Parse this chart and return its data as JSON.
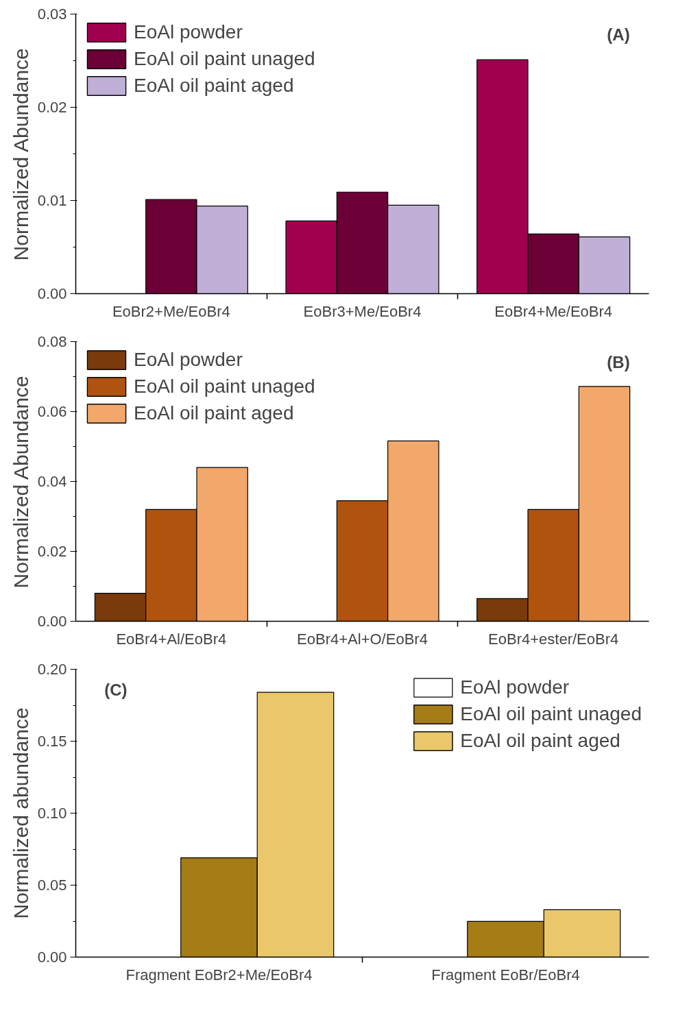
{
  "chart_data": [
    {
      "type": "bar",
      "ylabel": "Normalized Abundance",
      "categories": [
        "EoBr2+Me/EoBr4",
        "EoBr3+Me/EoBr4",
        "EoBr4+Me/EoBr4"
      ],
      "ylim": [
        0,
        0.03
      ],
      "yticks": [
        {
          "value": 0,
          "label": "0.00"
        },
        {
          "value": 0.01,
          "label": "0.01"
        },
        {
          "value": 0.02,
          "label": "0.02"
        },
        {
          "value": 0.03,
          "label": "0.03"
        }
      ],
      "legend": "top left",
      "annotations": [
        "(A)"
      ],
      "series": [
        {
          "name": "EoAl powder",
          "color": "#a0004f",
          "values": [
            null,
            0.0078,
            0.0251
          ]
        },
        {
          "name": "EoAl oil paint unaged",
          "color": "#6b0037",
          "values": [
            0.0101,
            0.0109,
            0.0064
          ]
        },
        {
          "name": "EoAl oil paint aged",
          "color": "#c0b0d8",
          "values": [
            0.0094,
            0.0095,
            0.0061
          ]
        }
      ]
    },
    {
      "type": "bar",
      "ylabel": "Normalized Abundance",
      "categories": [
        "EoBr4+Al/EoBr4",
        "EoBr4+Al+O/EoBr4",
        "EoBr4+ester/EoBr4"
      ],
      "ylim": [
        0,
        0.08
      ],
      "yticks": [
        {
          "value": 0,
          "label": "0.00"
        },
        {
          "value": 0.02,
          "label": "0.02"
        },
        {
          "value": 0.04,
          "label": "0.04"
        },
        {
          "value": 0.06,
          "label": "0.06"
        },
        {
          "value": 0.08,
          "label": "0.08"
        }
      ],
      "legend": "top left",
      "annotations": [
        "(B)"
      ],
      "series": [
        {
          "name": "EoAl powder",
          "color": "#7a3a0c",
          "values": [
            0.008,
            null,
            0.0065
          ]
        },
        {
          "name": "EoAl oil paint unaged",
          "color": "#b0530f",
          "values": [
            0.032,
            0.0345,
            0.032
          ]
        },
        {
          "name": "EoAl oil paint aged",
          "color": "#f2a86a",
          "values": [
            0.044,
            0.0516,
            0.0672
          ]
        }
      ]
    },
    {
      "type": "bar",
      "ylabel": "Normalized abundance",
      "categories": [
        "Fragment EoBr2+Me/EoBr4",
        "Fragment EoBr/EoBr4"
      ],
      "ylim": [
        0,
        0.2
      ],
      "yticks": [
        {
          "value": 0,
          "label": "0.00"
        },
        {
          "value": 0.05,
          "label": "0.05"
        },
        {
          "value": 0.1,
          "label": "0.10"
        },
        {
          "value": 0.15,
          "label": "0.15"
        },
        {
          "value": 0.2,
          "label": "0.20"
        }
      ],
      "legend": "top right",
      "annotations": [
        "(C)"
      ],
      "series": [
        {
          "name": "EoAl powder",
          "color": "#ffffff",
          "values": [
            null,
            null
          ]
        },
        {
          "name": "EoAl oil paint unaged",
          "color": "#a67c17",
          "values": [
            0.069,
            0.0248
          ]
        },
        {
          "name": "EoAl oil paint aged",
          "color": "#ebc76b",
          "values": [
            0.184,
            0.0329
          ]
        }
      ]
    }
  ]
}
